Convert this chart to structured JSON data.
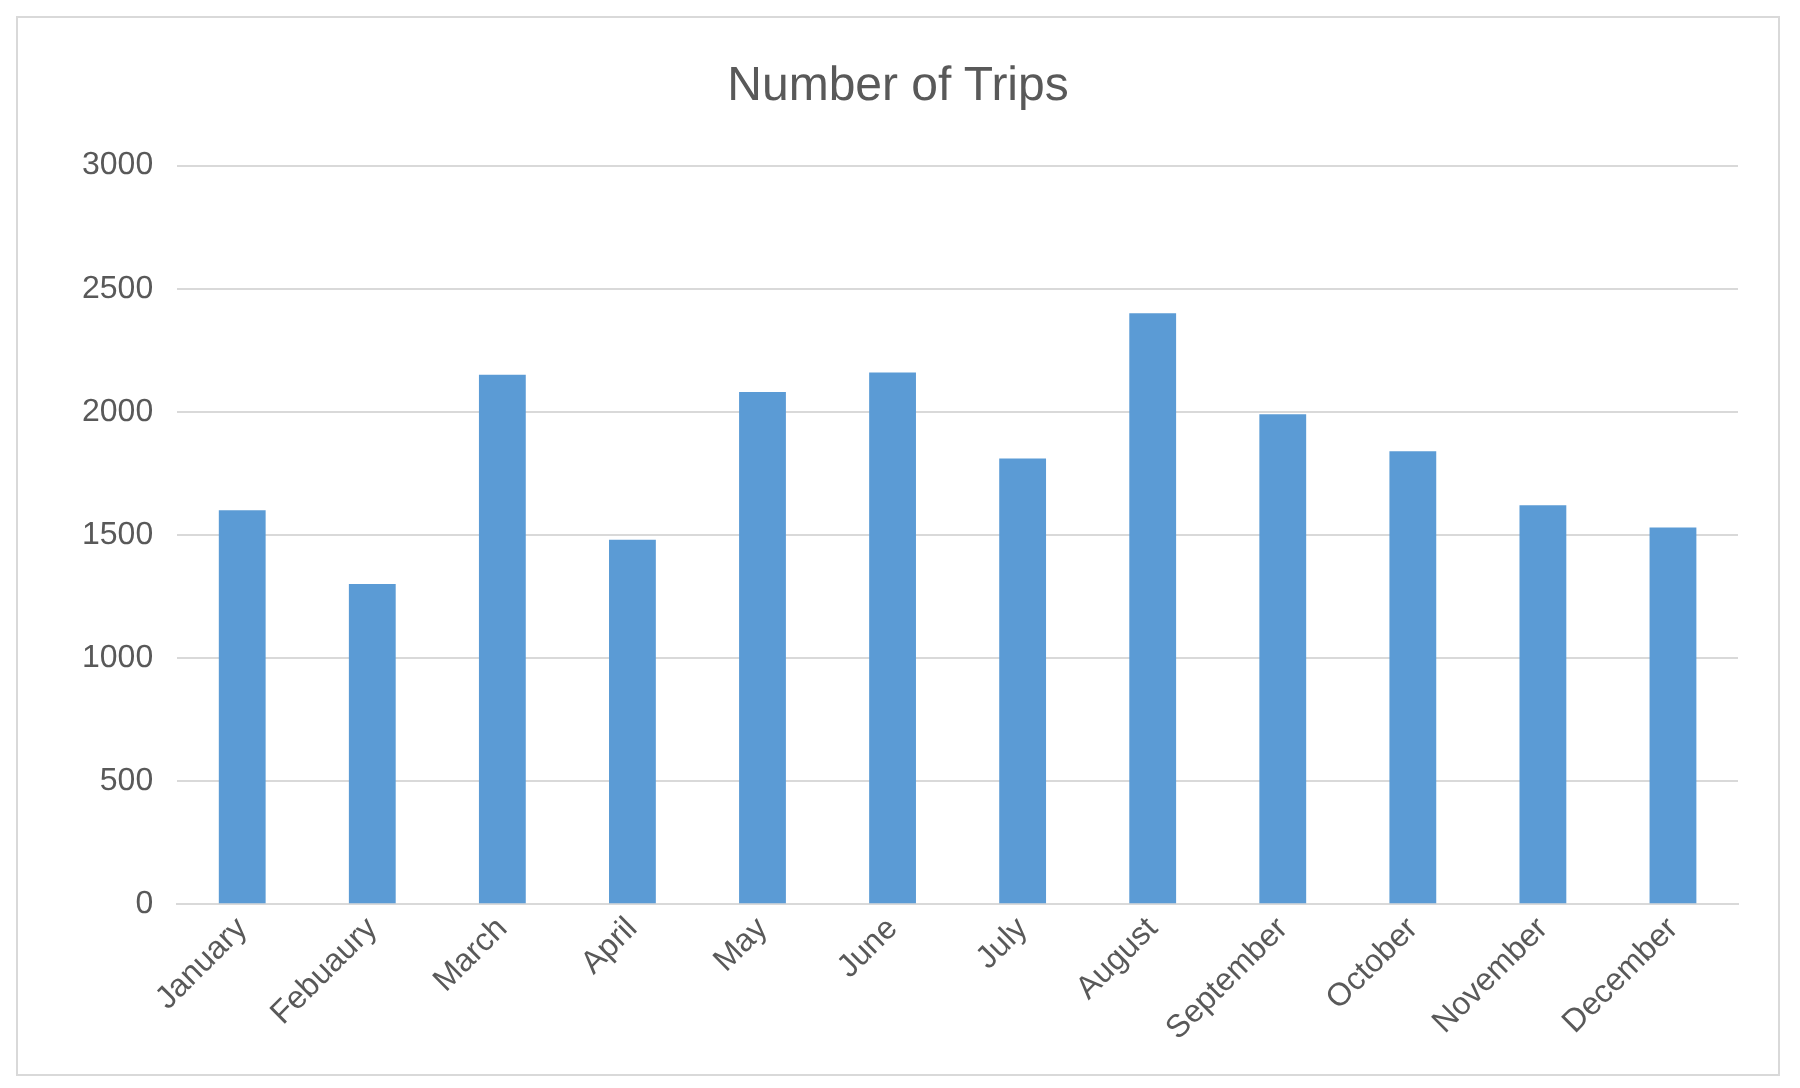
{
  "chart_data": {
    "type": "bar",
    "title": "Number of Trips",
    "categories": [
      "January",
      "Febuaury",
      "March",
      "April",
      "May",
      "June",
      "July",
      "August",
      "September",
      "October",
      "November",
      "December"
    ],
    "values": [
      1600,
      1300,
      2150,
      1480,
      2080,
      2160,
      1810,
      2400,
      1990,
      1840,
      1620,
      1530
    ],
    "color": "#5b9bd5",
    "ylim": [
      0,
      3000
    ],
    "yticks": [
      0,
      500,
      1000,
      1500,
      2000,
      2500,
      3000
    ],
    "grid": "y",
    "legend": false
  }
}
